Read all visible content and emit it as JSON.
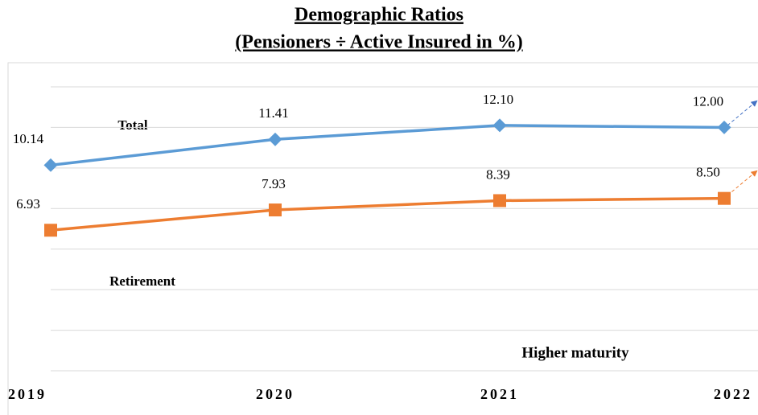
{
  "chart_data": {
    "type": "line",
    "title": "Demographic Ratios",
    "subtitle": "(Pensioners ÷ Active Insured in %)",
    "categories": [
      "2019",
      "2020",
      "2021",
      "2022"
    ],
    "series": [
      {
        "name": "Total",
        "color": "#5b9bd5",
        "values": [
          10.14,
          11.41,
          12.1,
          12.0
        ],
        "value_labels": [
          "10.14",
          "11.41",
          "12.10",
          "12.00"
        ]
      },
      {
        "name": "Retirement",
        "color": "#ed7d31",
        "values": [
          6.93,
          7.93,
          8.39,
          8.5
        ],
        "value_labels": [
          "6.93",
          "7.93",
          "8.39",
          "8.50"
        ]
      }
    ],
    "annotations": [
      "Higher maturity"
    ],
    "ylim": [
      0,
      14
    ],
    "yticks": [
      0,
      2,
      4,
      6,
      8,
      10,
      12,
      14
    ],
    "grid": true
  }
}
